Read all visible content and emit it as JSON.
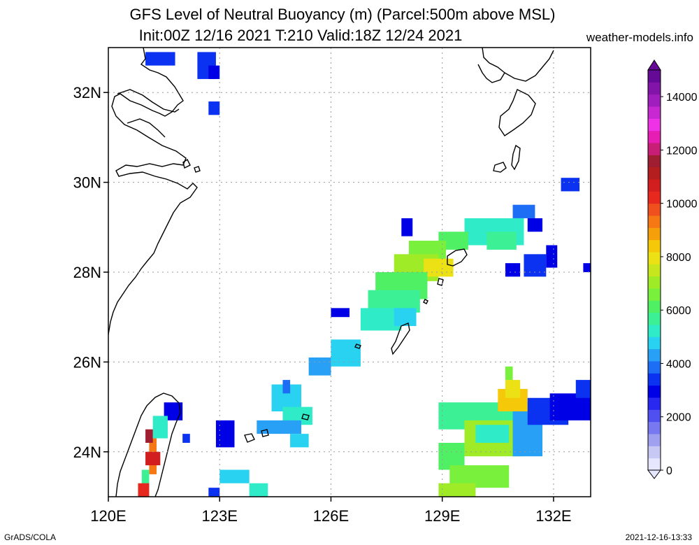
{
  "header": {
    "title_line1": "GFS Level of Neutral Buoyancy (m) (Parcel:500m above MSL)",
    "title_line2": "Init:00Z 12/16 2021 T:210 Valid:18Z 12/24 2021",
    "site": "weather-models.info"
  },
  "footer": {
    "left": "GrADS/COLA",
    "right": "2021-12-16-13:33"
  },
  "map": {
    "lon_range": [
      120,
      133
    ],
    "lat_range": [
      23,
      33
    ],
    "lat_labels": [
      "24N",
      "26N",
      "28N",
      "30N",
      "32N"
    ],
    "lon_labels": [
      "120E",
      "123E",
      "126E",
      "129E",
      "132E"
    ],
    "grid": "dotted"
  },
  "colorbar": {
    "labels": [
      "0",
      "2000",
      "4000",
      "6000",
      "8000",
      "10000",
      "12000",
      "14000"
    ],
    "colors": [
      "#e6e6ff",
      "#c8c8f5",
      "#a0a0f0",
      "#7878f0",
      "#5050f0",
      "#2828f0",
      "#0000e6",
      "#0a32f0",
      "#1e6ef5",
      "#28a0f5",
      "#28d2f0",
      "#30ebc8",
      "#3cf096",
      "#50f064",
      "#78f03c",
      "#a0eb28",
      "#c8e61e",
      "#ebe114",
      "#f5c80a",
      "#f5a00a",
      "#f57814",
      "#f0501e",
      "#e6281e",
      "#d21e1e",
      "#b41e1e",
      "#a01e32",
      "#c81e78",
      "#e61eb4",
      "#f032e6",
      "#c828d2",
      "#a01ebe",
      "#8214aa",
      "#640a96"
    ]
  }
}
